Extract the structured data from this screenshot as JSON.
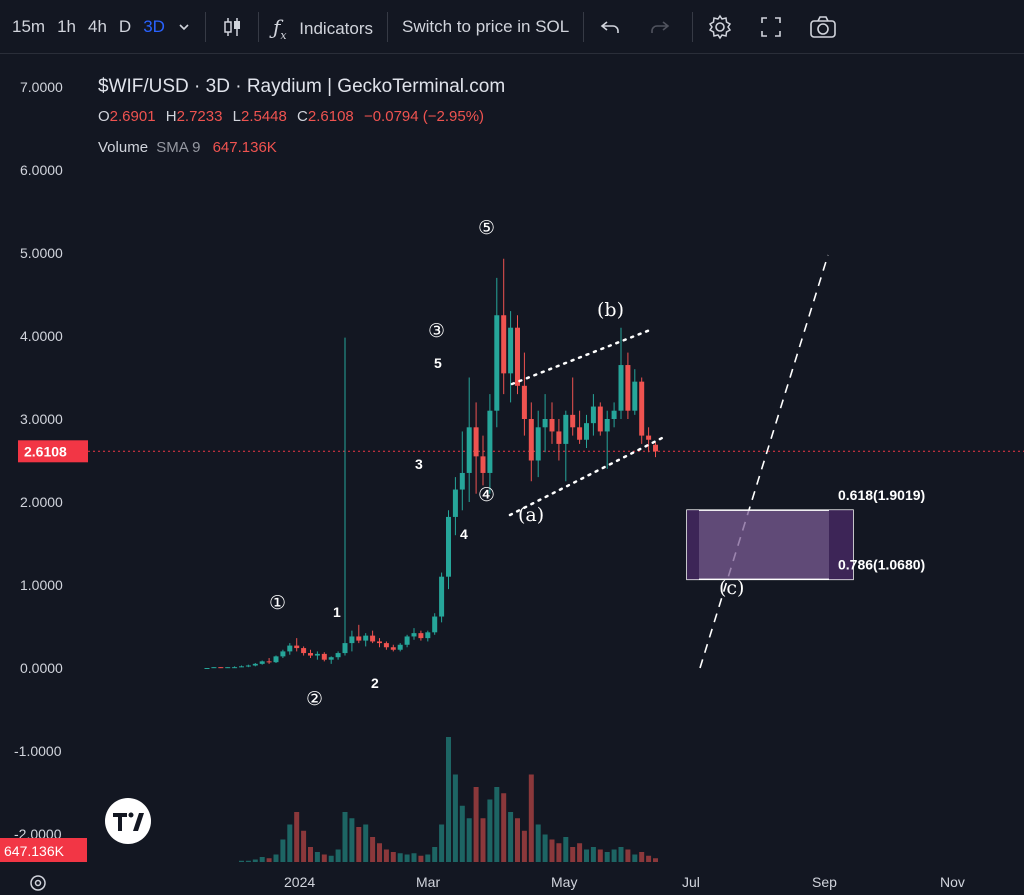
{
  "toolbar": {
    "timeframes": [
      "15m",
      "1h",
      "4h",
      "D",
      "3D"
    ],
    "active_timeframe": "3D",
    "indicators_label": "Indicators",
    "switch_label": "Switch to price in SOL"
  },
  "legend": {
    "title": "$WIF/USD · 3D · Raydium | GeckoTerminal.com",
    "o_label": "O",
    "o_value": "2.6901",
    "h_label": "H",
    "h_value": "2.7233",
    "l_label": "L",
    "l_value": "2.5448",
    "c_label": "C",
    "c_value": "2.6108",
    "change": "−0.0794 (−2.95%)",
    "volume_label": "Volume",
    "sma_label": "SMA 9",
    "sma_value": "647.136K"
  },
  "colors": {
    "up": "#26a69a",
    "down": "#ef5350",
    "background": "#131722",
    "price_line": "#f23645"
  },
  "chart_data": {
    "type": "candlestick",
    "title": "$WIF/USD · 3D · Raydium | GeckoTerminal.com",
    "y_axis": {
      "ticks": [
        "7.0000",
        "6.0000",
        "5.0000",
        "4.0000",
        "3.0000",
        "2.0000",
        "1.0000",
        "0.0000",
        "-1.0000",
        "-2.0000"
      ],
      "ylim": [
        -2.2,
        7.4
      ]
    },
    "x_axis": {
      "ticks": [
        "2024",
        "Mar",
        "May",
        "Jul",
        "Sep",
        "Nov"
      ]
    },
    "last_price": "2.6108",
    "volume_sma_value": "647.136K",
    "wave_labels": {
      "circled": [
        "①",
        "②",
        "③",
        "④",
        "⑤"
      ],
      "minor": [
        "1",
        "2",
        "3",
        "4",
        "5"
      ],
      "corrective": [
        "(a)",
        "(b)",
        "(c)"
      ]
    },
    "fib_levels": [
      {
        "label": "0.618(1.9019)",
        "value": 1.9019
      },
      {
        "label": "0.786(1.0680)",
        "value": 1.068
      }
    ],
    "candles": [
      [
        0.0,
        0.0,
        0.0,
        0.0,
        0
      ],
      [
        0.0,
        0.01,
        0.0,
        0.01,
        0
      ],
      [
        0.01,
        0.01,
        0.0,
        0.0,
        0
      ],
      [
        0.0,
        0.01,
        0.0,
        0.01,
        0
      ],
      [
        0.01,
        0.02,
        0.0,
        0.01,
        0
      ],
      [
        0.01,
        0.03,
        0.01,
        0.02,
        0.01
      ],
      [
        0.02,
        0.04,
        0.01,
        0.03,
        0.01
      ],
      [
        0.03,
        0.06,
        0.02,
        0.05,
        0.02
      ],
      [
        0.05,
        0.09,
        0.04,
        0.08,
        0.04
      ],
      [
        0.08,
        0.12,
        0.05,
        0.07,
        0.03
      ],
      [
        0.07,
        0.15,
        0.06,
        0.14,
        0.06
      ],
      [
        0.14,
        0.22,
        0.12,
        0.2,
        0.18
      ],
      [
        0.2,
        0.3,
        0.16,
        0.27,
        0.3
      ],
      [
        0.27,
        0.36,
        0.2,
        0.24,
        0.4
      ],
      [
        0.24,
        0.26,
        0.15,
        0.18,
        0.25
      ],
      [
        0.18,
        0.22,
        0.12,
        0.15,
        0.12
      ],
      [
        0.15,
        0.2,
        0.1,
        0.17,
        0.08
      ],
      [
        0.17,
        0.19,
        0.08,
        0.1,
        0.06
      ],
      [
        0.1,
        0.14,
        0.05,
        0.13,
        0.05
      ],
      [
        0.13,
        0.2,
        0.1,
        0.18,
        0.1
      ],
      [
        0.18,
        3.98,
        0.15,
        0.3,
        0.4
      ],
      [
        0.3,
        0.45,
        0.2,
        0.38,
        0.35
      ],
      [
        0.38,
        0.52,
        0.3,
        0.33,
        0.28
      ],
      [
        0.33,
        0.42,
        0.26,
        0.39,
        0.3
      ],
      [
        0.39,
        0.45,
        0.3,
        0.32,
        0.2
      ],
      [
        0.32,
        0.36,
        0.25,
        0.3,
        0.15
      ],
      [
        0.3,
        0.32,
        0.22,
        0.25,
        0.1
      ],
      [
        0.25,
        0.28,
        0.2,
        0.22,
        0.08
      ],
      [
        0.22,
        0.3,
        0.2,
        0.28,
        0.07
      ],
      [
        0.28,
        0.4,
        0.25,
        0.38,
        0.06
      ],
      [
        0.38,
        0.48,
        0.34,
        0.42,
        0.07
      ],
      [
        0.42,
        0.45,
        0.33,
        0.36,
        0.05
      ],
      [
        0.36,
        0.45,
        0.32,
        0.43,
        0.06
      ],
      [
        0.43,
        0.66,
        0.4,
        0.62,
        0.12
      ],
      [
        0.62,
        1.15,
        0.55,
        1.1,
        0.3
      ],
      [
        1.1,
        1.9,
        0.95,
        1.82,
        1.0
      ],
      [
        1.82,
        2.3,
        1.6,
        2.15,
        0.7
      ],
      [
        2.15,
        2.85,
        1.9,
        2.35,
        0.45
      ],
      [
        2.35,
        3.5,
        2.0,
        2.9,
        0.35
      ],
      [
        2.9,
        3.2,
        2.1,
        2.55,
        0.6
      ],
      [
        2.55,
        2.8,
        2.2,
        2.35,
        0.35
      ],
      [
        2.35,
        3.3,
        2.1,
        3.1,
        0.5
      ],
      [
        3.1,
        4.7,
        2.9,
        4.25,
        0.6
      ],
      [
        4.25,
        4.93,
        3.3,
        3.55,
        0.55
      ],
      [
        3.55,
        4.3,
        3.2,
        4.1,
        0.4
      ],
      [
        4.1,
        4.25,
        3.3,
        3.4,
        0.35
      ],
      [
        3.4,
        3.8,
        2.8,
        3.0,
        0.25
      ],
      [
        3.0,
        3.2,
        2.25,
        2.5,
        0.7
      ],
      [
        2.5,
        3.1,
        2.3,
        2.9,
        0.3
      ],
      [
        2.9,
        3.3,
        2.6,
        3.0,
        0.22
      ],
      [
        3.0,
        3.2,
        2.7,
        2.85,
        0.18
      ],
      [
        2.85,
        3.0,
        2.5,
        2.7,
        0.15
      ],
      [
        2.7,
        3.1,
        2.25,
        3.05,
        0.2
      ],
      [
        3.05,
        3.5,
        2.8,
        2.9,
        0.12
      ],
      [
        2.9,
        3.1,
        2.7,
        2.75,
        0.15
      ],
      [
        2.75,
        3.05,
        2.65,
        2.95,
        0.1
      ],
      [
        2.95,
        3.3,
        2.8,
        3.15,
        0.12
      ],
      [
        3.15,
        3.2,
        2.8,
        2.85,
        0.1
      ],
      [
        2.85,
        3.1,
        2.4,
        3.0,
        0.08
      ],
      [
        3.0,
        3.2,
        2.9,
        3.1,
        0.1
      ],
      [
        3.1,
        4.1,
        3.0,
        3.65,
        0.12
      ],
      [
        3.65,
        3.8,
        3.0,
        3.1,
        0.1
      ],
      [
        3.1,
        3.6,
        3.05,
        3.45,
        0.06
      ],
      [
        3.45,
        3.5,
        2.7,
        2.8,
        0.08
      ],
      [
        2.8,
        2.9,
        2.6,
        2.75,
        0.05
      ],
      [
        2.69,
        2.72,
        2.54,
        2.61,
        0.03
      ]
    ]
  }
}
